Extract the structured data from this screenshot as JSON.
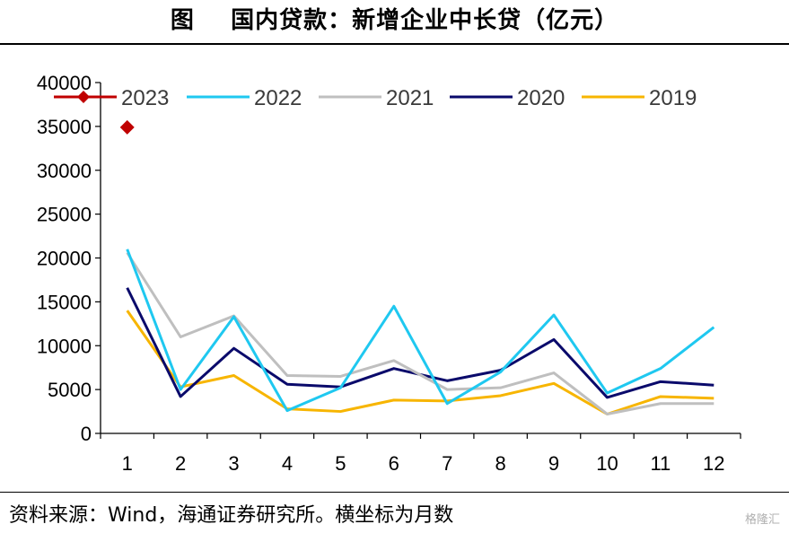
{
  "title": "图    国内贷款：新增企业中长贷（亿元）",
  "source": "资料来源：Wind，海通证券研究所。横坐标为月数",
  "watermark": "格隆汇",
  "chart_data": {
    "type": "line",
    "title": "图    国内贷款：新增企业中长贷（亿元）",
    "xlabel": "",
    "ylabel": "",
    "x": [
      1,
      2,
      3,
      4,
      5,
      6,
      7,
      8,
      9,
      10,
      11,
      12
    ],
    "xticks": [
      "1",
      "2",
      "3",
      "4",
      "5",
      "6",
      "7",
      "8",
      "9",
      "10",
      "11",
      "12"
    ],
    "ylim": [
      0,
      40000
    ],
    "yticks": [
      0,
      5000,
      10000,
      15000,
      20000,
      25000,
      30000,
      35000,
      40000
    ],
    "grid": false,
    "legend_position": "top",
    "series": [
      {
        "name": "2023",
        "color": "#c00000",
        "marker": "diamond",
        "values": [
          34900,
          null,
          null,
          null,
          null,
          null,
          null,
          null,
          null,
          null,
          null,
          null
        ]
      },
      {
        "name": "2022",
        "color": "#1fc8f0",
        "values": [
          21000,
          5000,
          13300,
          2600,
          5200,
          14500,
          3400,
          7000,
          13500,
          4600,
          7400,
          12100
        ]
      },
      {
        "name": "2021",
        "color": "#bfbfbf",
        "values": [
          20600,
          11000,
          13400,
          6600,
          6500,
          8300,
          5000,
          5200,
          6900,
          2200,
          3400,
          3400
        ]
      },
      {
        "name": "2020",
        "color": "#0a0a6b",
        "values": [
          16600,
          4200,
          9700,
          5600,
          5300,
          7400,
          6000,
          7200,
          10700,
          4100,
          5900,
          5500
        ]
      },
      {
        "name": "2019",
        "color": "#f7b500",
        "values": [
          14000,
          5300,
          6600,
          2800,
          2500,
          3800,
          3700,
          4300,
          5700,
          2200,
          4200,
          4000
        ]
      }
    ]
  }
}
